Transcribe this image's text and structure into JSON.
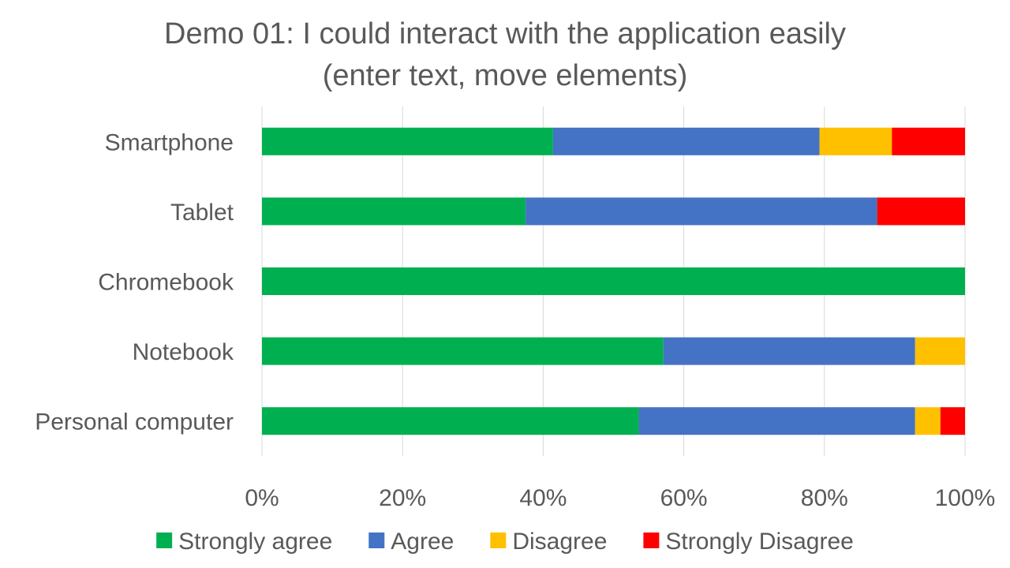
{
  "chart_data": {
    "type": "bar",
    "orientation": "horizontal",
    "stacked": "percent",
    "title": [
      "Demo 01: I could interact with the application easily",
      "(enter text, move elements)"
    ],
    "categories": [
      "Smartphone",
      "Tablet",
      "Chromebook",
      "Notebook",
      "Personal computer"
    ],
    "series": [
      {
        "name": "Strongly agree",
        "color": "#00b050",
        "values": [
          41.4,
          37.5,
          100,
          57.1,
          53.6
        ]
      },
      {
        "name": "Agree",
        "color": "#4472c4",
        "values": [
          37.9,
          50.0,
          0,
          35.8,
          39.3
        ]
      },
      {
        "name": "Disagree",
        "color": "#ffc000",
        "values": [
          10.3,
          0,
          0,
          7.1,
          3.6
        ]
      },
      {
        "name": "Strongly Disagree",
        "color": "#ff0000",
        "values": [
          10.4,
          12.5,
          0,
          0,
          3.5
        ]
      }
    ],
    "xaxis": {
      "ticks": [
        "0%",
        "20%",
        "40%",
        "60%",
        "80%",
        "100%"
      ],
      "range": [
        0,
        100
      ]
    },
    "grid": "vertical",
    "legend": "bottom"
  }
}
